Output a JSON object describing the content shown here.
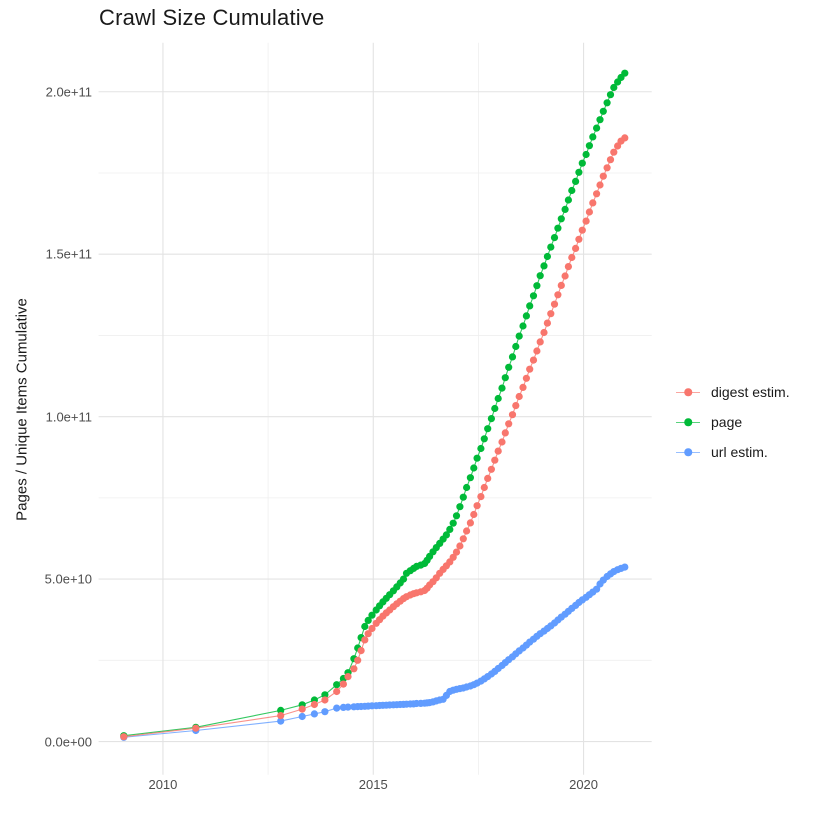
{
  "header": {
    "title": "Crawl Size Cumulative"
  },
  "chart_data": {
    "type": "scatter",
    "title": "Crawl Size Cumulative",
    "xlabel": "",
    "ylabel": "Pages / Unique Items Cumulative",
    "value_unit": "1e9 (billions of pages / unique items)",
    "grid": "on",
    "background": "#ffffff",
    "x_axis": {
      "range": [
        2008.47,
        2021.62
      ],
      "ticks": [
        {
          "value": 2010,
          "label": "2010"
        },
        {
          "value": 2015,
          "label": "2015"
        },
        {
          "value": 2020,
          "label": "2020"
        }
      ],
      "minor": [
        2012.5,
        2017.5
      ]
    },
    "y_axis": {
      "range": [
        -10.2,
        215.1
      ],
      "ticks": [
        {
          "value": 0,
          "label": "0.0e+00"
        },
        {
          "value": 50,
          "label": "5.0e+10"
        },
        {
          "value": 100,
          "label": "1.0e+11"
        },
        {
          "value": 150,
          "label": "1.5e+11"
        },
        {
          "value": 200,
          "label": "2.0e+11"
        }
      ],
      "minor": [
        25,
        75,
        125,
        175
      ]
    },
    "legend": {
      "position": "right",
      "entries": [
        {
          "label": "digest estim.",
          "color": "#F8766D"
        },
        {
          "label": "page",
          "color": "#00BA38"
        },
        {
          "label": "url estim.",
          "color": "#619CFF"
        }
      ]
    },
    "series": [
      {
        "name": "url estim.",
        "color": "#619CFF",
        "points": [
          [
            2009.07,
            1.3
          ],
          [
            2010.78,
            3.4
          ],
          [
            2012.8,
            6.3
          ],
          [
            2013.31,
            7.7
          ],
          [
            2013.6,
            8.5
          ],
          [
            2013.85,
            9.2
          ],
          [
            2014.13,
            10.3
          ],
          [
            2014.29,
            10.5
          ],
          [
            2014.4,
            10.6
          ],
          [
            2014.54,
            10.7
          ],
          [
            2014.63,
            10.75
          ],
          [
            2014.71,
            10.8
          ],
          [
            2014.8,
            10.85
          ],
          [
            2014.88,
            10.9
          ],
          [
            2014.97,
            11.0
          ],
          [
            2015.07,
            11.05
          ],
          [
            2015.15,
            11.1
          ],
          [
            2015.23,
            11.15
          ],
          [
            2015.31,
            11.2
          ],
          [
            2015.39,
            11.25
          ],
          [
            2015.48,
            11.3
          ],
          [
            2015.56,
            11.35
          ],
          [
            2015.64,
            11.4
          ],
          [
            2015.72,
            11.45
          ],
          [
            2015.79,
            11.5
          ],
          [
            2015.88,
            11.55
          ],
          [
            2015.96,
            11.6
          ],
          [
            2016.03,
            11.7
          ],
          [
            2016.13,
            11.75
          ],
          [
            2016.22,
            11.8
          ],
          [
            2016.28,
            11.9
          ],
          [
            2016.34,
            12.0
          ],
          [
            2016.42,
            12.2
          ],
          [
            2016.5,
            12.5
          ],
          [
            2016.58,
            12.8
          ],
          [
            2016.66,
            13.0
          ],
          [
            2016.74,
            14.2
          ],
          [
            2016.82,
            15.4
          ],
          [
            2016.9,
            15.8
          ],
          [
            2016.98,
            16.1
          ],
          [
            2017.06,
            16.3
          ],
          [
            2017.14,
            16.5
          ],
          [
            2017.22,
            16.8
          ],
          [
            2017.31,
            17.1
          ],
          [
            2017.39,
            17.5
          ],
          [
            2017.47,
            18.0
          ],
          [
            2017.56,
            18.6
          ],
          [
            2017.64,
            19.3
          ],
          [
            2017.72,
            20.0
          ],
          [
            2017.81,
            20.8
          ],
          [
            2017.89,
            21.6
          ],
          [
            2017.97,
            22.5
          ],
          [
            2018.06,
            23.4
          ],
          [
            2018.14,
            24.3
          ],
          [
            2018.22,
            25.2
          ],
          [
            2018.31,
            26.1
          ],
          [
            2018.39,
            27.0
          ],
          [
            2018.47,
            27.9
          ],
          [
            2018.56,
            28.8
          ],
          [
            2018.64,
            29.7
          ],
          [
            2018.72,
            30.6
          ],
          [
            2018.81,
            31.5
          ],
          [
            2018.89,
            32.4
          ],
          [
            2018.97,
            33.2
          ],
          [
            2019.06,
            34.0
          ],
          [
            2019.14,
            34.8
          ],
          [
            2019.22,
            35.6
          ],
          [
            2019.31,
            36.5
          ],
          [
            2019.39,
            37.4
          ],
          [
            2019.47,
            38.3
          ],
          [
            2019.56,
            39.2
          ],
          [
            2019.64,
            40.1
          ],
          [
            2019.72,
            41.0
          ],
          [
            2019.81,
            41.9
          ],
          [
            2019.89,
            42.8
          ],
          [
            2019.97,
            43.6
          ],
          [
            2020.06,
            44.4
          ],
          [
            2020.14,
            45.2
          ],
          [
            2020.22,
            46.0
          ],
          [
            2020.31,
            46.9
          ],
          [
            2020.39,
            48.5
          ],
          [
            2020.47,
            49.7
          ],
          [
            2020.56,
            50.8
          ],
          [
            2020.64,
            51.6
          ],
          [
            2020.72,
            52.3
          ],
          [
            2020.81,
            52.9
          ],
          [
            2020.89,
            53.3
          ],
          [
            2020.98,
            53.7
          ]
        ]
      },
      {
        "name": "page",
        "color": "#00BA38",
        "points": [
          [
            2009.07,
            1.8
          ],
          [
            2010.78,
            4.4
          ],
          [
            2012.8,
            9.6
          ],
          [
            2013.31,
            11.3
          ],
          [
            2013.6,
            12.8
          ],
          [
            2013.85,
            14.4
          ],
          [
            2014.13,
            17.5
          ],
          [
            2014.29,
            19.4
          ],
          [
            2014.4,
            21.2
          ],
          [
            2014.54,
            25.5
          ],
          [
            2014.63,
            28.8
          ],
          [
            2014.71,
            32.0
          ],
          [
            2014.8,
            35.4
          ],
          [
            2014.88,
            37.3
          ],
          [
            2014.97,
            38.9
          ],
          [
            2015.07,
            40.5
          ],
          [
            2015.15,
            41.8
          ],
          [
            2015.23,
            43.0
          ],
          [
            2015.31,
            44.1
          ],
          [
            2015.39,
            45.2
          ],
          [
            2015.48,
            46.4
          ],
          [
            2015.56,
            47.6
          ],
          [
            2015.64,
            48.8
          ],
          [
            2015.72,
            50.0
          ],
          [
            2015.79,
            51.8
          ],
          [
            2015.88,
            52.6
          ],
          [
            2015.96,
            53.3
          ],
          [
            2016.03,
            53.9
          ],
          [
            2016.13,
            54.3
          ],
          [
            2016.22,
            54.8
          ],
          [
            2016.28,
            55.8
          ],
          [
            2016.34,
            57.0
          ],
          [
            2016.42,
            58.4
          ],
          [
            2016.5,
            59.7
          ],
          [
            2016.58,
            61.0
          ],
          [
            2016.66,
            62.3
          ],
          [
            2016.74,
            63.6
          ],
          [
            2016.82,
            65.3
          ],
          [
            2016.9,
            67.2
          ],
          [
            2016.98,
            69.5
          ],
          [
            2017.06,
            72.3
          ],
          [
            2017.14,
            75.2
          ],
          [
            2017.22,
            78.2
          ],
          [
            2017.31,
            81.2
          ],
          [
            2017.39,
            84.2
          ],
          [
            2017.47,
            87.2
          ],
          [
            2017.56,
            90.2
          ],
          [
            2017.64,
            93.2
          ],
          [
            2017.72,
            96.3
          ],
          [
            2017.81,
            99.4
          ],
          [
            2017.89,
            102.5
          ],
          [
            2017.97,
            105.6
          ],
          [
            2018.06,
            108.8
          ],
          [
            2018.14,
            112.0
          ],
          [
            2018.22,
            115.2
          ],
          [
            2018.31,
            118.4
          ],
          [
            2018.39,
            121.6
          ],
          [
            2018.47,
            124.8
          ],
          [
            2018.56,
            127.9
          ],
          [
            2018.64,
            131.0
          ],
          [
            2018.72,
            134.1
          ],
          [
            2018.81,
            137.2
          ],
          [
            2018.89,
            140.3
          ],
          [
            2018.97,
            143.4
          ],
          [
            2019.06,
            146.4
          ],
          [
            2019.14,
            149.3
          ],
          [
            2019.22,
            152.2
          ],
          [
            2019.31,
            155.1
          ],
          [
            2019.39,
            158.0
          ],
          [
            2019.47,
            160.9
          ],
          [
            2019.56,
            163.8
          ],
          [
            2019.64,
            166.7
          ],
          [
            2019.72,
            169.6
          ],
          [
            2019.81,
            172.4
          ],
          [
            2019.89,
            175.2
          ],
          [
            2019.97,
            178.0
          ],
          [
            2020.06,
            180.7
          ],
          [
            2020.14,
            183.4
          ],
          [
            2020.22,
            186.1
          ],
          [
            2020.31,
            188.8
          ],
          [
            2020.39,
            191.4
          ],
          [
            2020.47,
            194.0
          ],
          [
            2020.56,
            196.6
          ],
          [
            2020.64,
            199.1
          ],
          [
            2020.72,
            201.3
          ],
          [
            2020.81,
            203.0
          ],
          [
            2020.89,
            204.4
          ],
          [
            2020.98,
            205.7
          ]
        ]
      },
      {
        "name": "digest estim.",
        "color": "#F8766D",
        "points": [
          [
            2009.07,
            1.5
          ],
          [
            2010.78,
            4.1
          ],
          [
            2012.8,
            8.0
          ],
          [
            2013.31,
            10.0
          ],
          [
            2013.6,
            11.4
          ],
          [
            2013.85,
            12.8
          ],
          [
            2014.13,
            15.4
          ],
          [
            2014.29,
            17.7
          ],
          [
            2014.4,
            20.0
          ],
          [
            2014.54,
            22.4
          ],
          [
            2014.63,
            25.0
          ],
          [
            2014.71,
            28.0
          ],
          [
            2014.8,
            31.3
          ],
          [
            2014.88,
            33.2
          ],
          [
            2014.97,
            34.8
          ],
          [
            2015.07,
            36.4
          ],
          [
            2015.15,
            37.5
          ],
          [
            2015.23,
            38.6
          ],
          [
            2015.31,
            39.6
          ],
          [
            2015.39,
            40.5
          ],
          [
            2015.48,
            41.5
          ],
          [
            2015.56,
            42.4
          ],
          [
            2015.64,
            43.2
          ],
          [
            2015.72,
            44.0
          ],
          [
            2015.79,
            44.6
          ],
          [
            2015.88,
            45.1
          ],
          [
            2015.96,
            45.5
          ],
          [
            2016.03,
            45.8
          ],
          [
            2016.13,
            46.1
          ],
          [
            2016.22,
            46.5
          ],
          [
            2016.28,
            47.2
          ],
          [
            2016.34,
            48.2
          ],
          [
            2016.42,
            49.2
          ],
          [
            2016.5,
            50.4
          ],
          [
            2016.58,
            51.8
          ],
          [
            2016.66,
            53.0
          ],
          [
            2016.74,
            54.1
          ],
          [
            2016.82,
            55.3
          ],
          [
            2016.9,
            56.7
          ],
          [
            2016.98,
            58.3
          ],
          [
            2017.06,
            60.2
          ],
          [
            2017.14,
            62.4
          ],
          [
            2017.22,
            64.8
          ],
          [
            2017.31,
            67.3
          ],
          [
            2017.39,
            69.9
          ],
          [
            2017.47,
            72.6
          ],
          [
            2017.56,
            75.4
          ],
          [
            2017.64,
            78.2
          ],
          [
            2017.72,
            81.0
          ],
          [
            2017.81,
            83.8
          ],
          [
            2017.89,
            86.6
          ],
          [
            2017.97,
            89.4
          ],
          [
            2018.06,
            92.2
          ],
          [
            2018.14,
            95.0
          ],
          [
            2018.22,
            97.8
          ],
          [
            2018.31,
            100.6
          ],
          [
            2018.39,
            103.4
          ],
          [
            2018.47,
            106.2
          ],
          [
            2018.56,
            109.0
          ],
          [
            2018.64,
            111.8
          ],
          [
            2018.72,
            114.6
          ],
          [
            2018.81,
            117.4
          ],
          [
            2018.89,
            120.2
          ],
          [
            2018.97,
            123.0
          ],
          [
            2019.06,
            125.9
          ],
          [
            2019.14,
            128.8
          ],
          [
            2019.22,
            131.7
          ],
          [
            2019.31,
            134.6
          ],
          [
            2019.39,
            137.5
          ],
          [
            2019.47,
            140.4
          ],
          [
            2019.56,
            143.3
          ],
          [
            2019.64,
            146.2
          ],
          [
            2019.72,
            149.0
          ],
          [
            2019.81,
            151.8
          ],
          [
            2019.89,
            154.6
          ],
          [
            2019.97,
            157.4
          ],
          [
            2020.06,
            160.2
          ],
          [
            2020.14,
            163.0
          ],
          [
            2020.22,
            165.8
          ],
          [
            2020.31,
            168.6
          ],
          [
            2020.39,
            171.3
          ],
          [
            2020.47,
            174.0
          ],
          [
            2020.56,
            176.6
          ],
          [
            2020.64,
            179.1
          ],
          [
            2020.72,
            181.4
          ],
          [
            2020.81,
            183.3
          ],
          [
            2020.89,
            184.8
          ],
          [
            2020.98,
            185.8
          ]
        ]
      }
    ],
    "style": {
      "grid_major_color": "#e3e3e3",
      "grid_minor_color": "#efefef",
      "tick_label_color": "#4d4d4d",
      "text_color": "#1a1a1a",
      "point_radius": 3.6,
      "line_width": 1.1
    }
  }
}
